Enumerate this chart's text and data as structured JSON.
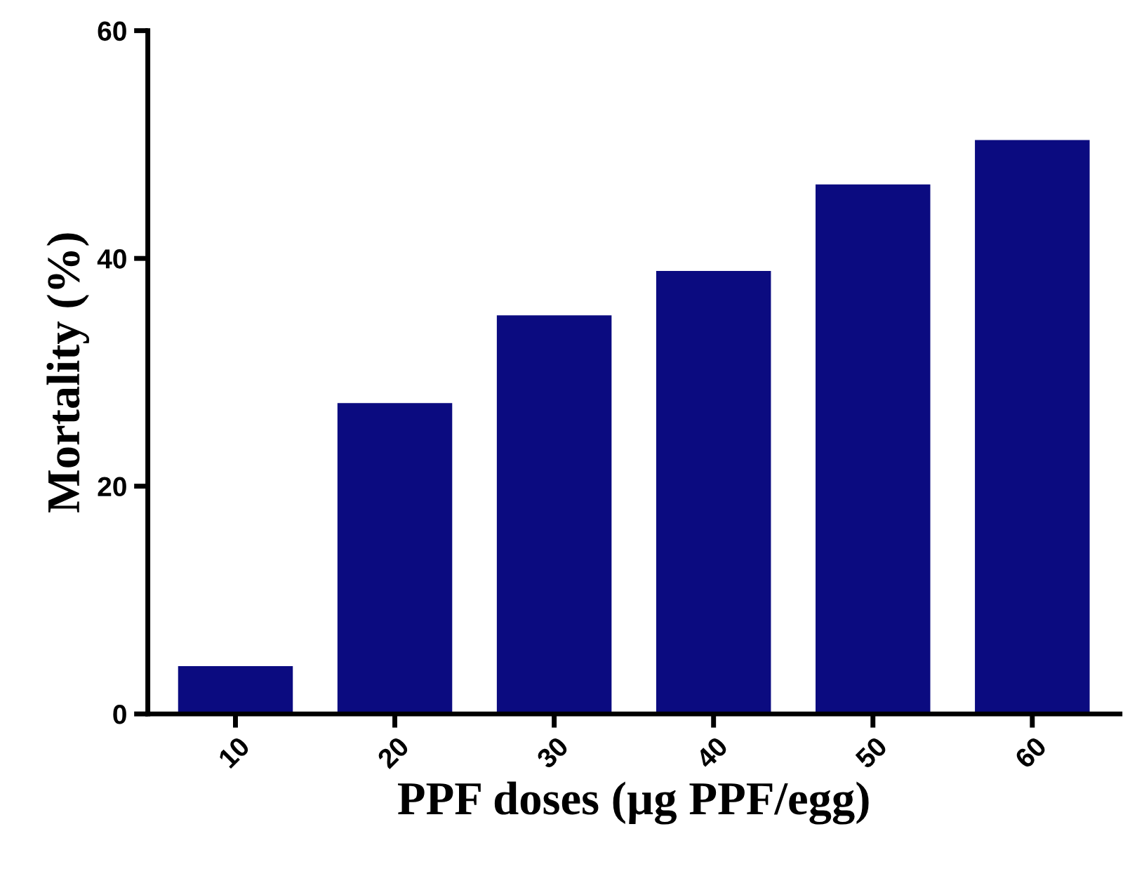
{
  "chart_data": {
    "type": "bar",
    "xlabel": "PPF doses (µg PPF/egg)",
    "ylabel": "Mortality (%)",
    "categories": [
      "10",
      "20",
      "30",
      "40",
      "50",
      "60"
    ],
    "values": [
      4.2,
      27.3,
      35.0,
      38.9,
      46.5,
      50.4
    ],
    "color": "#0b0b80",
    "ylim": [
      0,
      60
    ],
    "yticks": [
      0,
      20,
      40,
      60
    ],
    "grid": false
  }
}
